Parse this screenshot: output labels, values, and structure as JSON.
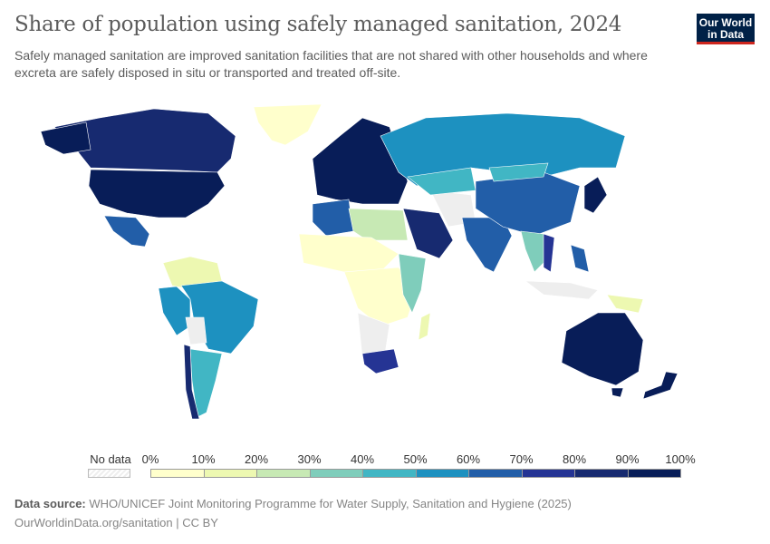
{
  "title": "Share of population using safely managed sanitation, 2024",
  "subtitle": "Safely managed sanitation are improved sanitation facilities that are not shared with other households and where excreta are safely disposed in situ or transported and treated off-site.",
  "logo": {
    "line1": "Our World",
    "line2": "in Data"
  },
  "chart_data": {
    "type": "choropleth",
    "title": "Share of population using safely managed sanitation, 2024",
    "year": 2024,
    "legend": {
      "no_data_label": "No data",
      "tick_labels": [
        "0%",
        "10%",
        "20%",
        "30%",
        "40%",
        "50%",
        "60%",
        "70%",
        "80%",
        "90%",
        "100%"
      ],
      "bins": [
        0,
        10,
        20,
        30,
        40,
        50,
        60,
        70,
        80,
        90,
        100
      ],
      "colors": [
        "#ffffcc",
        "#edf8b1",
        "#c7e9b4",
        "#7fcdbb",
        "#41b6c4",
        "#1d91c0",
        "#225ea8",
        "#253494",
        "#172a70",
        "#081d58"
      ],
      "no_data_color": "#eeeeee"
    }
  },
  "footer": {
    "source_label": "Data source:",
    "source_text": "WHO/UNICEF Joint Monitoring Programme for Water Supply, Sanitation and Hygiene (2025)",
    "url_license": "OurWorldinData.org/sanitation | CC BY"
  }
}
